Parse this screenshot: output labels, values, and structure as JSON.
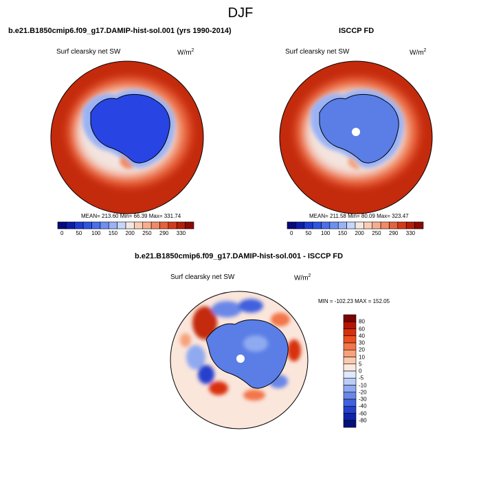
{
  "season": "DJF",
  "panels": {
    "model": {
      "title": "b.e21.B1850cmip6.f09_g17.DAMIP-hist-sol.001 (yrs 1990-2014)",
      "variable": "Surf clearsky net SW",
      "units": "W/m",
      "units_power": "2",
      "stats": "MEAN= 213.60  Min=  66.39  Max= 331.74"
    },
    "obs": {
      "title": "ISCCP FD",
      "variable": "Surf clearsky net SW",
      "units": "W/m",
      "units_power": "2",
      "stats": "MEAN= 211.58  Min=  80.09  Max= 323.47"
    },
    "diff": {
      "title": "b.e21.B1850cmip6.f09_g17.DAMIP-hist-sol.001 - ISCCP FD",
      "variable": "Surf clearsky net SW",
      "units": "W/m",
      "units_power": "2",
      "stats": "MIN = -102.23 MAX = 152.05"
    }
  },
  "colorbars": {
    "absolute": {
      "tick_labels": [
        "0",
        "50",
        "100",
        "150",
        "200",
        "250",
        "290",
        "330"
      ],
      "colors": [
        "#08087a",
        "#0a1ea8",
        "#1e3cd0",
        "#2e55e2",
        "#4a6fe8",
        "#6e8ef0",
        "#9ab2f5",
        "#c6d6fa",
        "#f3e8df",
        "#f8cdb6",
        "#f6ae8e",
        "#f08a66",
        "#e4623f",
        "#d23a1c",
        "#b41e06",
        "#8a0a04"
      ]
    },
    "difference": {
      "tick_labels": [
        "80",
        "60",
        "40",
        "30",
        "20",
        "10",
        "5",
        "0",
        "-5",
        "-10",
        "-20",
        "-30",
        "-40",
        "-60",
        "-80"
      ],
      "colors": [
        "#7a0303",
        "#b41505",
        "#d8300e",
        "#ea5020",
        "#f2764a",
        "#f7a27a",
        "#fbc9ad",
        "#fce8dd",
        "#dfe9fb",
        "#b9cdf7",
        "#8faaf0",
        "#6a87e8",
        "#4161de",
        "#2540cd",
        "#1024a8",
        "#06107a"
      ]
    }
  }
}
